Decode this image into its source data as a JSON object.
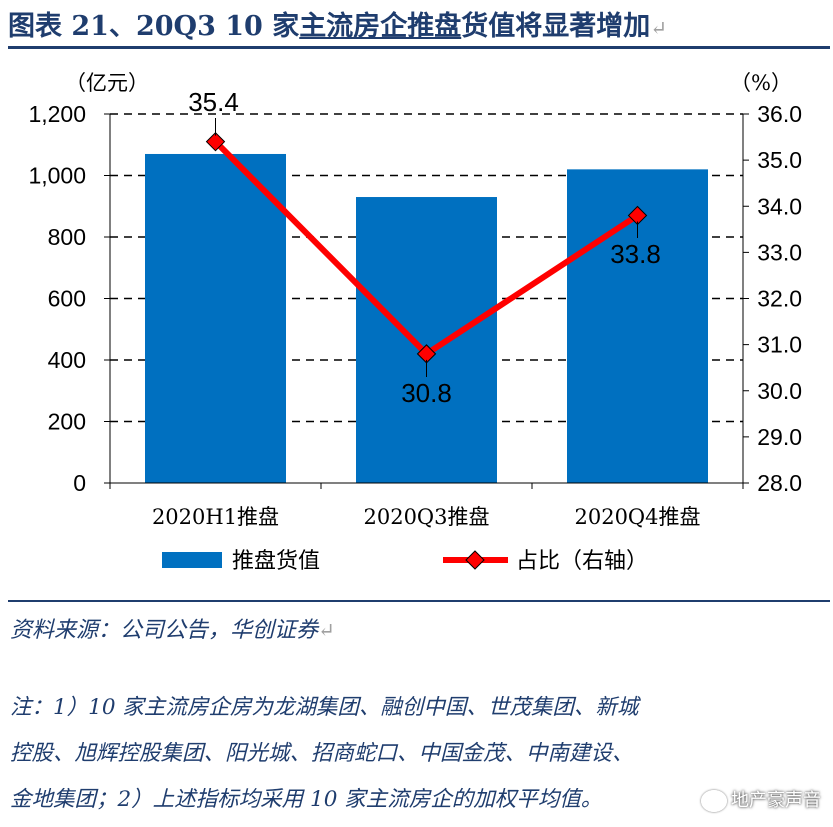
{
  "title": {
    "prefix": "图表 21、20Q3 10 家",
    "underlined": "主流房企推盘",
    "suffix": "货值将显著增加"
  },
  "chart_data": {
    "type": "bar",
    "categories": [
      "2020H1推盘",
      "2020Q3推盘",
      "2020Q4推盘"
    ],
    "series": [
      {
        "name": "推盘货值",
        "type": "bar",
        "axis": "left",
        "values": [
          1070,
          930,
          1020
        ],
        "color": "#0070c0"
      },
      {
        "name": "占比（右轴）",
        "type": "line",
        "axis": "right",
        "values": [
          35.4,
          30.8,
          33.8
        ],
        "color": "#ff0000",
        "labels": [
          "35.4",
          "30.8",
          "33.8"
        ]
      }
    ],
    "y_left": {
      "unit": "（亿元）",
      "min": 0,
      "max": 1200,
      "ticks": [
        "0",
        "200",
        "400",
        "600",
        "800",
        "1,000",
        "1,200"
      ]
    },
    "y_right": {
      "unit": "（%）",
      "min": 28,
      "max": 36,
      "ticks": [
        "28.0",
        "29.0",
        "30.0",
        "31.0",
        "32.0",
        "33.0",
        "34.0",
        "35.0",
        "36.0"
      ]
    },
    "grid": true,
    "legend_position": "bottom"
  },
  "source": "资料来源：公司公告，华创证券",
  "notes": [
    "注：1）10 家主流房企房为龙湖集团、融创中国、世茂集团、新城",
    "控股、旭辉控股集团、阳光城、招商蛇口、中国金茂、中南建设、",
    "金地集团；2）上述指标均采用 10 家主流房企的加权平均值。"
  ],
  "watermark": "地产豪声音"
}
